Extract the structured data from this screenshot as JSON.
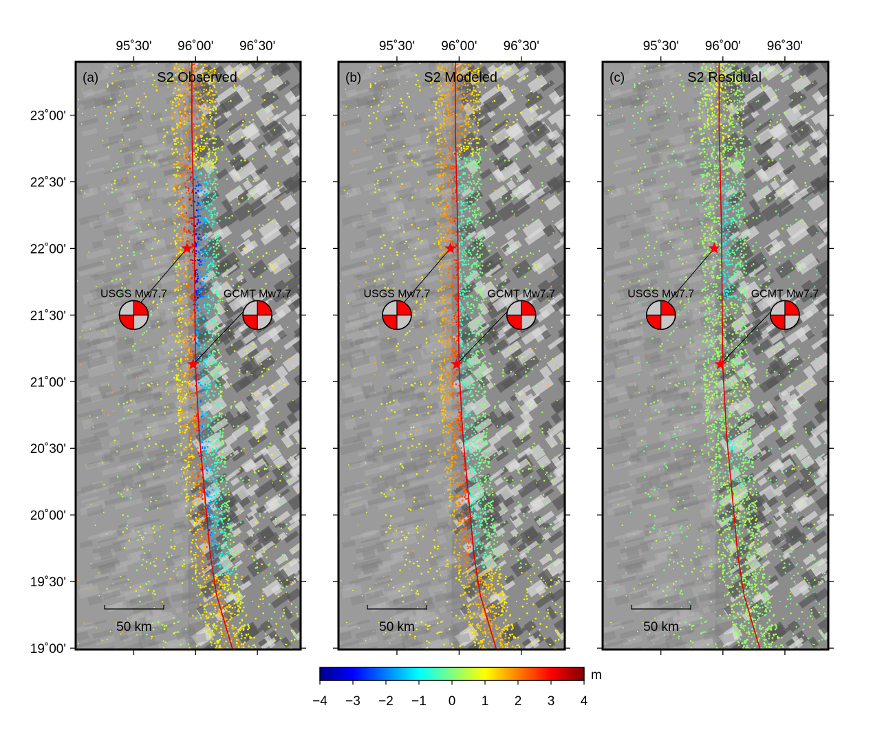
{
  "panels": [
    {
      "letter": "(a)",
      "title": "S2 Observed",
      "mode": "observed"
    },
    {
      "letter": "(b)",
      "title": "S2 Modeled",
      "mode": "modeled"
    },
    {
      "letter": "(c)",
      "title": "S2 Residual",
      "mode": "residual"
    }
  ],
  "lon_ticks": [
    {
      "label": "95˚30'",
      "lon": 95.5
    },
    {
      "label": "96˚00'",
      "lon": 96.0
    },
    {
      "label": "96˚30'",
      "lon": 96.5
    }
  ],
  "lat_ticks": [
    {
      "label": "23˚00'",
      "lat": 23.0
    },
    {
      "label": "22˚30'",
      "lat": 22.5
    },
    {
      "label": "22˚00'",
      "lat": 22.0
    },
    {
      "label": "21˚30'",
      "lat": 21.5
    },
    {
      "label": "21˚00'",
      "lat": 21.0
    },
    {
      "label": "20˚30'",
      "lat": 20.5
    },
    {
      "label": "20˚00'",
      "lat": 20.0
    },
    {
      "label": "19˚30'",
      "lat": 19.5
    },
    {
      "label": "19˚00'",
      "lat": 19.0
    }
  ],
  "map_extent": {
    "lon_min": 95.03,
    "lon_max": 96.85,
    "lat_min": 18.99,
    "lat_max": 23.4
  },
  "epicenters": [
    {
      "name": "USGS",
      "lon": 95.93,
      "lat": 22.0
    },
    {
      "name": "GCMT",
      "lon": 95.98,
      "lat": 21.13
    }
  ],
  "focal_mechanisms": [
    {
      "label": "USGS  Mw7.7",
      "lon": 95.5,
      "lat": 21.5,
      "epicenter": "USGS"
    },
    {
      "label": "GCMT  Mw7.7",
      "lon": 96.5,
      "lat": 21.5,
      "epicenter": "GCMT"
    }
  ],
  "scale_bar": {
    "label": "50 km",
    "length_km": 50
  },
  "colorbar": {
    "unit": "m",
    "min": -4,
    "max": 4,
    "tick_labels": [
      "−4",
      "−3",
      "−2",
      "−1",
      "0",
      "1",
      "2",
      "3",
      "4"
    ],
    "colors": [
      "#00008f",
      "#0000ff",
      "#007fff",
      "#00ffff",
      "#7fff7f",
      "#ffff00",
      "#ff7f00",
      "#ff0000",
      "#7f0000"
    ]
  },
  "fault_trace": [
    [
      95.97,
      23.4
    ],
    [
      95.97,
      22.9
    ],
    [
      95.98,
      22.5
    ],
    [
      95.99,
      22.1
    ],
    [
      95.995,
      21.5
    ],
    [
      96.0,
      21.1
    ],
    [
      96.03,
      20.6
    ],
    [
      96.07,
      20.2
    ],
    [
      96.12,
      19.7
    ],
    [
      96.17,
      19.4
    ],
    [
      96.3,
      18.99
    ]
  ],
  "colors": {
    "fault": "#e00000",
    "star": "#ff0000",
    "terrain_base": "#8c8c8c",
    "background": "#ffffff"
  }
}
